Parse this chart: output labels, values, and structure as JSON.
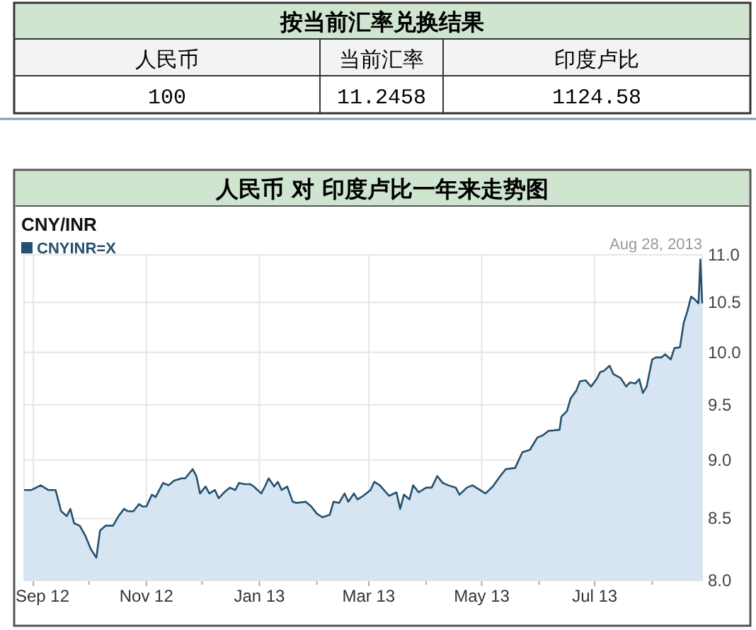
{
  "chart_data": {
    "type": "area",
    "title": "人民币 对 印度卢比一年来走势图",
    "subtitle": "CNY/INR",
    "annotations": [
      "按当前汇率兑换结果",
      "人民币",
      "当前汇率",
      "印度卢比",
      "100",
      "11.2458",
      "1124.58",
      "Aug 28, 2013"
    ],
    "x": [
      "2012-08-27",
      "2012-08-31",
      "2012-09-05",
      "2012-09-09",
      "2012-09-13",
      "2012-09-16",
      "2012-09-19",
      "2012-09-21",
      "2012-09-23",
      "2012-09-26",
      "2012-09-29",
      "2012-10-02",
      "2012-10-05",
      "2012-10-07",
      "2012-10-10",
      "2012-10-14",
      "2012-10-17",
      "2012-10-20",
      "2012-10-22",
      "2012-10-25",
      "2012-10-28",
      "2012-10-30",
      "2012-11-01",
      "2012-11-04",
      "2012-11-06",
      "2012-11-10",
      "2012-11-13",
      "2012-11-16",
      "2012-11-20",
      "2012-11-22",
      "2012-11-26",
      "2012-11-28",
      "2012-11-30",
      "2012-12-03",
      "2012-12-05",
      "2012-12-08",
      "2012-12-10",
      "2012-12-13",
      "2012-12-16",
      "2012-12-19",
      "2012-12-21",
      "2012-12-24",
      "2012-12-27",
      "2012-12-29",
      "2013-01-02",
      "2013-01-04",
      "2013-01-06",
      "2013-01-09",
      "2013-01-11",
      "2013-01-13",
      "2013-01-16",
      "2013-01-19",
      "2013-01-21",
      "2013-01-26",
      "2013-01-29",
      "2013-02-01",
      "2013-02-04",
      "2013-02-08",
      "2013-02-10",
      "2013-02-13",
      "2013-02-16",
      "2013-02-18",
      "2013-02-21",
      "2013-02-23",
      "2013-02-26",
      "2013-03-02",
      "2013-03-04",
      "2013-03-07",
      "2013-03-12",
      "2013-03-16",
      "2013-03-18",
      "2013-03-20",
      "2013-03-23",
      "2013-03-25",
      "2013-03-28",
      "2013-04-01",
      "2013-04-04",
      "2013-04-07",
      "2013-04-10",
      "2013-04-13",
      "2013-04-17",
      "2013-04-19",
      "2013-04-23",
      "2013-04-26",
      "2013-04-30",
      "2013-05-03",
      "2013-05-07",
      "2013-05-11",
      "2013-05-14",
      "2013-05-19",
      "2013-05-23",
      "2013-05-27",
      "2013-05-31",
      "2013-06-03",
      "2013-06-06",
      "2013-06-12",
      "2013-06-13",
      "2013-06-16",
      "2013-06-18",
      "2013-06-21",
      "2013-06-23",
      "2013-06-26",
      "2013-06-29",
      "2013-07-02",
      "2013-07-04",
      "2013-07-06",
      "2013-07-09",
      "2013-07-11",
      "2013-07-15",
      "2013-07-18",
      "2013-07-20",
      "2013-07-23",
      "2013-07-25",
      "2013-07-27",
      "2013-07-29",
      "2013-08-01",
      "2013-08-03",
      "2013-08-06",
      "2013-08-08",
      "2013-08-11",
      "2013-08-13",
      "2013-08-16",
      "2013-08-18",
      "2013-08-20",
      "2013-08-22",
      "2013-08-24",
      "2013-08-26",
      "2013-08-27",
      "2013-08-28"
    ],
    "series": [
      {
        "name": "CNYINR=X",
        "color": "#24506f",
        "values": [
          8.74,
          8.74,
          8.78,
          8.74,
          8.74,
          8.56,
          8.52,
          8.58,
          8.46,
          8.44,
          8.36,
          8.25,
          8.18,
          8.4,
          8.44,
          8.44,
          8.52,
          8.58,
          8.56,
          8.56,
          8.62,
          8.6,
          8.6,
          8.7,
          8.68,
          8.8,
          8.78,
          8.82,
          8.84,
          8.84,
          8.92,
          8.86,
          8.71,
          8.77,
          8.71,
          8.74,
          8.67,
          8.72,
          8.76,
          8.74,
          8.8,
          8.79,
          8.79,
          8.77,
          8.71,
          8.77,
          8.84,
          8.77,
          8.81,
          8.74,
          8.77,
          8.64,
          8.63,
          8.64,
          8.6,
          8.54,
          8.51,
          8.53,
          8.64,
          8.63,
          8.71,
          8.64,
          8.71,
          8.66,
          8.69,
          8.74,
          8.81,
          8.78,
          8.69,
          8.72,
          8.58,
          8.7,
          8.66,
          8.78,
          8.72,
          8.76,
          8.76,
          8.86,
          8.8,
          8.78,
          8.76,
          8.7,
          8.76,
          8.78,
          8.74,
          8.71,
          8.77,
          8.86,
          8.92,
          8.93,
          9.07,
          9.09,
          9.2,
          9.22,
          9.26,
          9.27,
          9.39,
          9.44,
          9.56,
          9.63,
          9.72,
          9.73,
          9.67,
          9.74,
          9.81,
          9.82,
          9.87,
          9.79,
          9.75,
          9.67,
          9.71,
          9.7,
          9.74,
          9.61,
          9.67,
          9.93,
          9.95,
          9.95,
          9.98,
          9.93,
          10.04,
          10.05,
          10.29,
          10.41,
          10.56,
          10.53,
          10.49,
          10.95,
          10.49
        ]
      }
    ],
    "xlim": [
      "2012-08-27",
      "2013-08-28"
    ],
    "xticks": [
      {
        "value": "2012-09-01",
        "label": "Sep 12"
      },
      {
        "value": "2012-10-01",
        "label": null
      },
      {
        "value": "2012-11-01",
        "label": "Nov 12"
      },
      {
        "value": "2012-12-01",
        "label": null
      },
      {
        "value": "2013-01-01",
        "label": "Jan 13"
      },
      {
        "value": "2013-02-01",
        "label": null
      },
      {
        "value": "2013-03-01",
        "label": "Mar 13"
      },
      {
        "value": "2013-04-01",
        "label": null
      },
      {
        "value": "2013-05-01",
        "label": "May 13"
      },
      {
        "value": "2013-06-01",
        "label": null
      },
      {
        "value": "2013-07-01",
        "label": "Jul 13"
      },
      {
        "value": "2013-08-01",
        "label": null
      }
    ],
    "ylim": [
      8.0,
      11.0
    ],
    "log": true,
    "yticks": [
      {
        "value": 8,
        "label": "8.0"
      },
      8.5,
      {
        "value": 9,
        "label": "9.0"
      },
      9.5,
      {
        "value": 10,
        "label": "10.0"
      },
      10.5,
      {
        "value": 11,
        "label": "11.0"
      }
    ],
    "grid": true,
    "legend": "top left",
    "marker": "none",
    "line_style": "solid"
  }
}
